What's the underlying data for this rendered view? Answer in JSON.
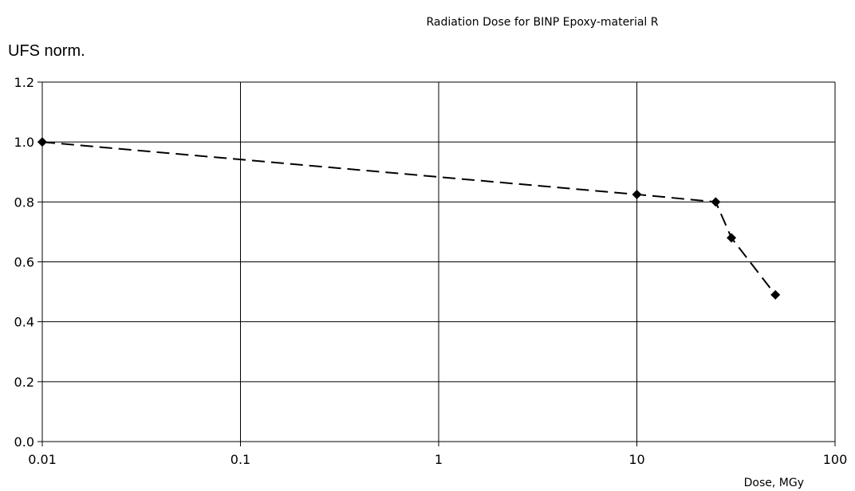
{
  "chart_data": {
    "type": "line",
    "title": "Radiation Dose for BINP Epoxy-material R",
    "ylabel": "UFS norm.",
    "xlabel": "Dose, MGy",
    "x_scale": "log",
    "xlim": [
      0.01,
      100
    ],
    "ylim": [
      0.0,
      1.2
    ],
    "x_ticks": [
      0.01,
      0.1,
      1,
      10,
      100
    ],
    "x_tick_labels": [
      "0.01",
      "0.1",
      "1",
      "10",
      "100"
    ],
    "y_ticks": [
      0.0,
      0.2,
      0.4,
      0.6,
      0.8,
      1.0,
      1.2
    ],
    "y_tick_labels": [
      "0.0",
      "0.2",
      "0.4",
      "0.6",
      "0.8",
      "1.0",
      "1.2"
    ],
    "grid": true,
    "series": [
      {
        "x": [
          0.01,
          10,
          25,
          30,
          50
        ],
        "y": [
          1.0,
          0.825,
          0.8,
          0.68,
          0.49
        ],
        "line_style": "dashed",
        "marker": "diamond",
        "color": "#000000"
      }
    ]
  }
}
